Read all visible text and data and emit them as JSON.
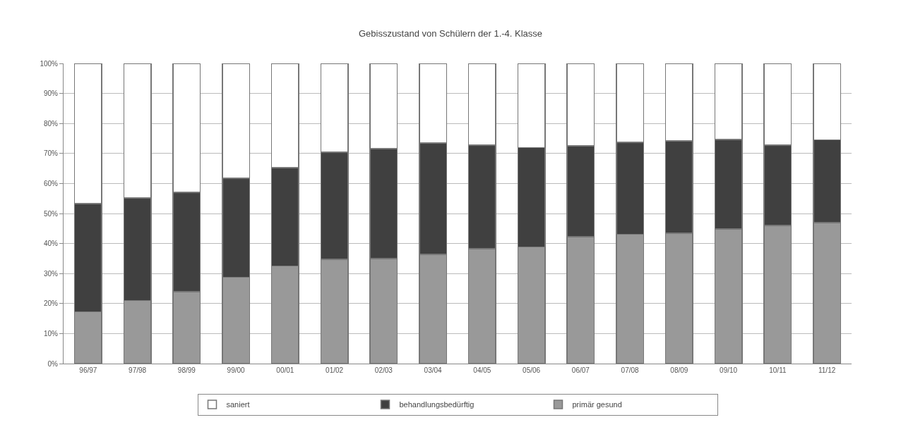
{
  "chart_data": {
    "type": "bar",
    "title": "Gebisszustand von Schülern der 1.-4. Klasse",
    "categories": [
      "96/97",
      "97/98",
      "98/99",
      "99/00",
      "00/01",
      "01/02",
      "02/03",
      "03/04",
      "04/05",
      "05/06",
      "06/07",
      "07/08",
      "08/09",
      "09/10",
      "10/11",
      "11/12"
    ],
    "stacked": true,
    "series": [
      {
        "name": "primär gesund",
        "color": "#999999",
        "values": [
          17.3,
          21.0,
          24.0,
          28.7,
          32.5,
          34.7,
          35.0,
          36.4,
          38.3,
          38.8,
          42.2,
          43.1,
          43.4,
          44.8,
          46.0,
          47.0
        ]
      },
      {
        "name": "behandlungsbedürftig",
        "color": "#404040",
        "values": [
          36.0,
          34.2,
          33.1,
          33.0,
          32.8,
          35.7,
          36.6,
          37.1,
          34.5,
          33.2,
          30.3,
          30.6,
          30.8,
          29.9,
          26.8,
          27.5
        ]
      },
      {
        "name": "saniert",
        "color": "#ffffff",
        "values": [
          46.7,
          44.8,
          42.9,
          38.3,
          34.7,
          29.6,
          28.4,
          26.5,
          27.2,
          28.0,
          27.5,
          26.3,
          25.8,
          25.3,
          27.2,
          25.5
        ]
      }
    ],
    "ylim": [
      0,
      100
    ],
    "yticks": [
      {
        "value": 0,
        "label": "0%"
      },
      {
        "value": 10,
        "label": "10%"
      },
      {
        "value": 20,
        "label": "20%"
      },
      {
        "value": 30,
        "label": "30%"
      },
      {
        "value": 40,
        "label": "40%"
      },
      {
        "value": 50,
        "label": "50%"
      },
      {
        "value": 60,
        "label": "60%"
      },
      {
        "value": 70,
        "label": "70%"
      },
      {
        "value": 80,
        "label": "80%"
      },
      {
        "value": 90,
        "label": "90%"
      },
      {
        "value": 100,
        "label": "100%"
      }
    ],
    "grid": "y",
    "legend": "bottom"
  }
}
